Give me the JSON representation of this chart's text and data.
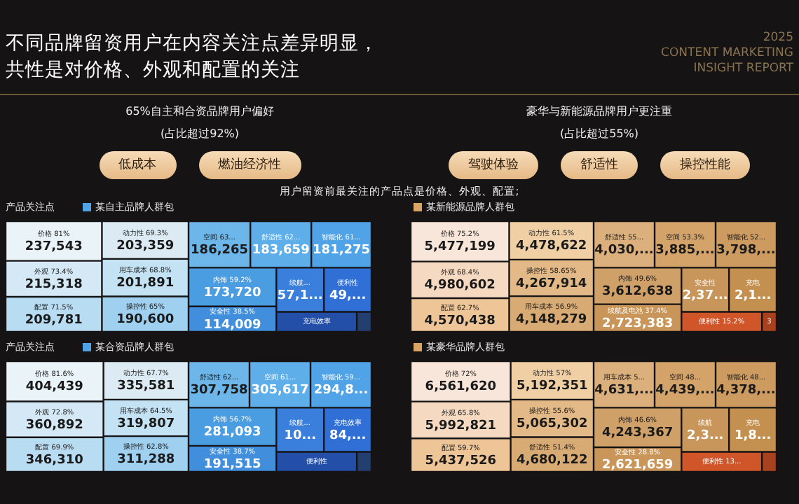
{
  "chart_data": [
    {
      "type": "other",
      "title": "不同品牌留资用户在内容关注点差异明显，共性是对价格、外观和配置的关注",
      "subtitle": "用户留资前最关注的产品点是价格、外观、配置;",
      "annotations": [
        "2025\nCONTENT MARKETING\nINSIGHT REPORT",
        "65%自主和合资品牌用户偏好",
        "(占比超过92%)",
        "低成本",
        "燃油经济性",
        "豪华与新能源品牌用户更注重",
        "(占比超过55%)",
        "驾驶体验",
        "舒适性",
        "操控性能"
      ]
    },
    {
      "type": "other",
      "legend_title": "产品关注点",
      "legend": "top left",
      "categories": [
        "价格 81%",
        "动力性 69.3%",
        "外观 73.4%",
        "用车成本 68.8%",
        "配置 71.5%",
        "操控性 65%",
        "空间 63...",
        "舒适性 62...",
        "智能化 61...",
        "内饰 59.2%",
        "安全性 38.5%",
        "续航...",
        "便利性",
        "充电效率",
        null
      ],
      "series": [
        {
          "name": "某自主品牌人群包",
          "color": "#4fa3e6",
          "values": [
            237543,
            203359,
            215318,
            201891,
            209781,
            190600,
            186265,
            183659,
            181275,
            173720,
            114009,
            null,
            null,
            null,
            null
          ],
          "value_labels": [
            "237,543",
            "203,359",
            "215,318",
            "201,891",
            "209,781",
            "190,600",
            "186,265",
            "183,659",
            "181,275",
            "173,720",
            "114,009",
            "57,1...",
            "49,...",
            null,
            null
          ],
          "colors": [
            "#eaf3f8",
            "#dcebf3",
            "#d5e8f5",
            "#c3e2f3",
            "#b8dcf2",
            "#9fd0ef",
            "#6cb6ea",
            "#5eaeea",
            "#4fa3e6",
            "#4b9de2",
            "#418fdc",
            "#3a7fdc",
            "#2f6fd6",
            "#244fa8",
            "#233f70"
          ]
        }
      ]
    },
    {
      "type": "other",
      "legend": "top left",
      "categories": [
        "价格 75.2%",
        "动力性 61.5%",
        "外观 68.4%",
        "操控性 58.65%",
        "配置 62.7%",
        "用车成本 56.9%",
        "舒适性 55...",
        "空间 53.3%",
        "智能化 52...",
        "内饰 49.6%",
        "续航及电池 37.4%",
        "安全性",
        "充电",
        "便利性 15.2%",
        "3"
      ],
      "series": [
        {
          "name": "某新能源品牌人群包",
          "color": "#d9a464",
          "values": [
            5477199,
            4478622,
            4980602,
            4267914,
            4570438,
            4148279,
            null,
            null,
            null,
            3612638,
            2723383,
            null,
            null,
            null,
            null
          ],
          "value_labels": [
            "5,477,199",
            "4,478,622",
            "4,980,602",
            "4,267,914",
            "4,570,438",
            "4,148,279",
            "4,030,...",
            "3,885,...",
            "3,798,...",
            "3,612,638",
            "2,723,383",
            "2,37...",
            "2,1...",
            null,
            null
          ],
          "colors": [
            "#f8e6da",
            "#f0cfa5",
            "#f5d9c0",
            "#e3b987",
            "#eec597",
            "#d9ab74",
            "#dcb07c",
            "#d4a36a",
            "#cd9b60",
            "#cfa068",
            "#c99558",
            "#c8955a",
            "#c49050",
            "#d0562a",
            "#a8421e"
          ]
        }
      ]
    },
    {
      "type": "other",
      "legend_title": "产品关注点",
      "legend": "top left",
      "categories": [
        "价格 81.6%",
        "动力性 67.7%",
        "外观 72.8%",
        "用车成本 64.5%",
        "配置 69.9%",
        "操控性 62.8%",
        "舒适性 62...",
        "空间 61...",
        "智能化 59...",
        "内饰 56.7%",
        "安全性 38.7%",
        "续航...",
        "充电效率",
        "便利性",
        null
      ],
      "series": [
        {
          "name": "某合资品牌人群包",
          "color": "#4fa3e6",
          "values": [
            404439,
            335581,
            360892,
            319807,
            346310,
            311288,
            307758,
            305617,
            null,
            281093,
            191515,
            null,
            null,
            null,
            null
          ],
          "value_labels": [
            "404,439",
            "335,581",
            "360,892",
            "319,807",
            "346,310",
            "311,288",
            "307,758",
            "305,617",
            "294,8...",
            "281,093",
            "191,515",
            "10...",
            "84,...",
            null,
            null
          ],
          "colors": [
            "#eaf3f8",
            "#dcebf3",
            "#d5e8f5",
            "#c3e2f3",
            "#b8dcf2",
            "#9fd0ef",
            "#6cb6ea",
            "#5eaeea",
            "#4fa3e6",
            "#4b9de2",
            "#418fdc",
            "#3a7fdc",
            "#2f6fd6",
            "#244fa8",
            "#233f70"
          ]
        }
      ]
    },
    {
      "type": "other",
      "legend": "top left",
      "categories": [
        "价格 72%",
        "动力性 57%",
        "外观 65.8%",
        "操控性 55.6%",
        "配置 59.7%",
        "舒适性 51.4%",
        "用车成本 5...",
        "空间 48...",
        "智能化 48...",
        "内饰 46.6%",
        "安全性 28.8%",
        "续航",
        "充电",
        "便利性 13...",
        null
      ],
      "series": [
        {
          "name": "某豪华品牌人群包",
          "color": "#d9a464",
          "values": [
            6561620,
            5192351,
            5992821,
            5065302,
            5437526,
            4680122,
            null,
            null,
            null,
            4243367,
            2621659,
            null,
            null,
            null,
            null
          ],
          "value_labels": [
            "6,561,620",
            "5,192,351",
            "5,992,821",
            "5,065,302",
            "5,437,526",
            "4,680,122",
            "4,631,...",
            "4,439,...",
            "4,378,...",
            "4,243,367",
            "2,621,659",
            "2,3...",
            "1,8...",
            null,
            null
          ],
          "colors": [
            "#f8e6da",
            "#f0cfa5",
            "#f5d9c0",
            "#e3b987",
            "#eec597",
            "#d9ab74",
            "#dcb07c",
            "#d4a36a",
            "#cd9b60",
            "#cfa068",
            "#c99558",
            "#c8955a",
            "#c49050",
            "#d0562a",
            "#a8421e"
          ]
        }
      ]
    }
  ]
}
